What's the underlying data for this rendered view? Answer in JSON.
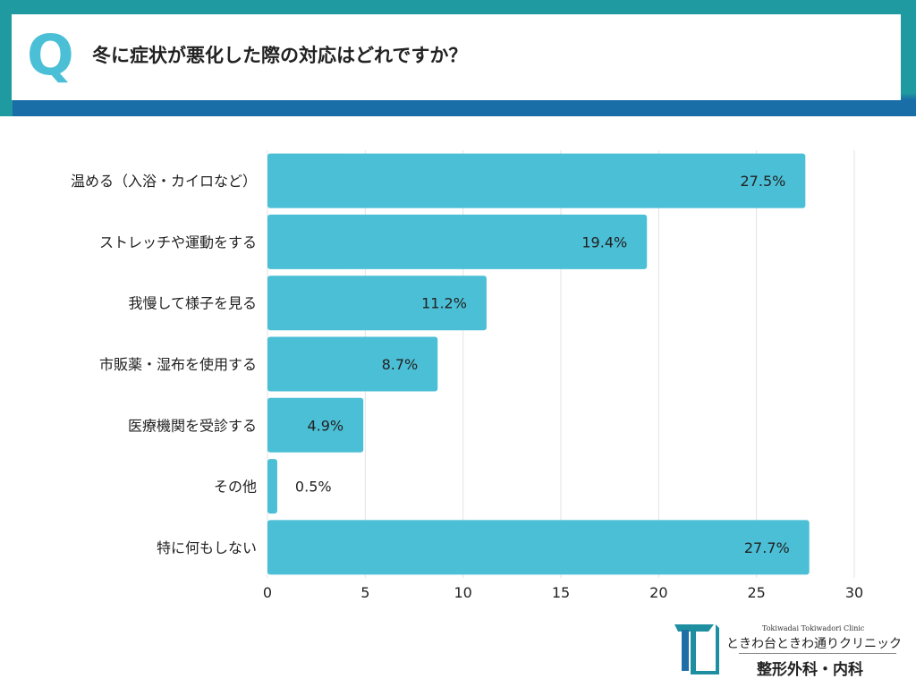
{
  "header": {
    "q_mark": "Q",
    "question": "冬に症状が悪化した際の対応はどれですか？"
  },
  "colors": {
    "bar": "#4bbfd6",
    "header_teal": "#1f9aa0",
    "header_blue": "#1a6ea8",
    "grid": "#e3e3e3"
  },
  "chart_data": {
    "type": "bar",
    "orientation": "horizontal",
    "categories": [
      "温める（入浴・カイロなど）",
      "ストレッチや運動をする",
      "我慢して様子を見る",
      "市販薬・湿布を使用する",
      "医療機関を受診する",
      "その他",
      "特に何もしない"
    ],
    "values": [
      27.5,
      19.4,
      11.2,
      8.7,
      4.9,
      0.5,
      27.7
    ],
    "data_labels": [
      "27.5%",
      "19.4%",
      "11.2%",
      "8.7%",
      "4.9%",
      "0.5%",
      "27.7%"
    ],
    "xlim": [
      0,
      30
    ],
    "xticks": [
      "0",
      "5",
      "10",
      "15",
      "20",
      "25",
      "30"
    ],
    "grid": "vertical"
  },
  "logo": {
    "sub": "Tokiwadai Tokiwadori Clinic",
    "name": "ときわ台ときわ通りクリニック",
    "dept": "整形外科・内科"
  }
}
